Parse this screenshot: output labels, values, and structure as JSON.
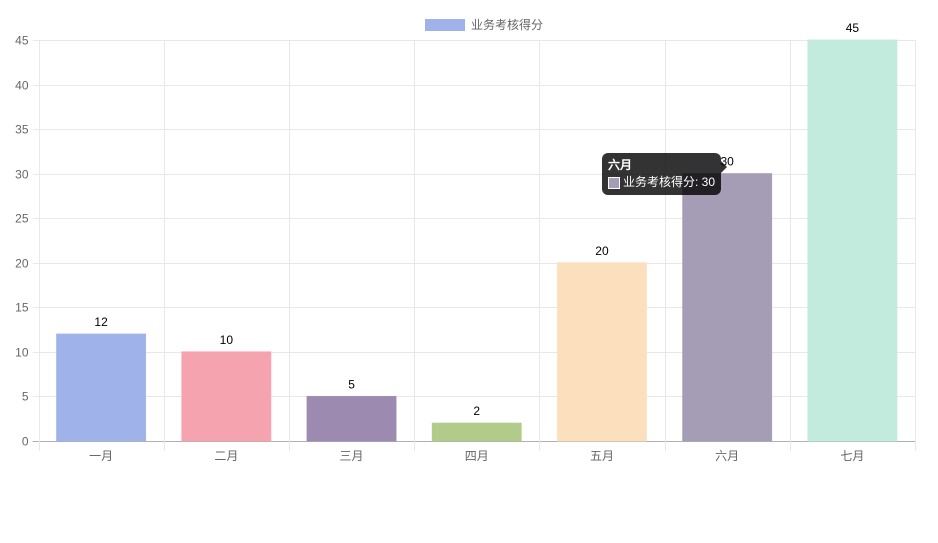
{
  "legend": {
    "label": "业务考核得分",
    "color": "#a0b2ea"
  },
  "tooltip": {
    "title": "六月",
    "label": "业务考核得分: 30",
    "swatch_color": "#a59db5"
  },
  "chart_data": {
    "type": "bar",
    "title": "",
    "xlabel": "",
    "ylabel": "",
    "categories": [
      "一月",
      "二月",
      "三月",
      "四月",
      "五月",
      "六月",
      "七月"
    ],
    "series": [
      {
        "name": "业务考核得分",
        "values": [
          12,
          10,
          5,
          2,
          20,
          30,
          45
        ],
        "colors": [
          "#a0b2ea",
          "#f5a3af",
          "#9c8ab1",
          "#b1cb8a",
          "#fce0bd",
          "#a59db5",
          "#c2eadd"
        ]
      }
    ],
    "ylim": [
      0,
      45
    ],
    "yticks": [
      0,
      5,
      10,
      15,
      20,
      25,
      30,
      35,
      40,
      45
    ],
    "grid": true,
    "legend_position": "top",
    "data_labels": true,
    "active_tooltip_category": "六月"
  }
}
